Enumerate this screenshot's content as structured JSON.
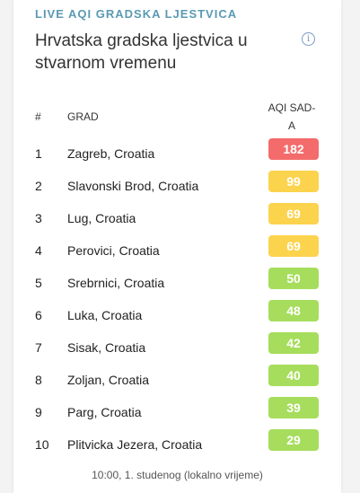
{
  "widget": {
    "eyebrow": "LIVE AQI GRADSKA LJESTVICA",
    "title": "Hrvatska gradska ljestvica u stvarnom vremenu",
    "info_icon": "info-icon",
    "info_glyph": "i"
  },
  "table": {
    "headers": {
      "rank": "#",
      "city": "GRAD",
      "aqi": "AQI SAD-A"
    },
    "rows": [
      {
        "rank": "1",
        "city": "Zagreb, Croatia",
        "aqi": "182",
        "color": "#f46b6b"
      },
      {
        "rank": "2",
        "city": "Slavonski Brod, Croatia",
        "aqi": "99",
        "color": "#fcd34d"
      },
      {
        "rank": "3",
        "city": "Lug, Croatia",
        "aqi": "69",
        "color": "#fcd34d"
      },
      {
        "rank": "4",
        "city": "Perovici, Croatia",
        "aqi": "69",
        "color": "#fcd34d"
      },
      {
        "rank": "5",
        "city": "Srebrnici, Croatia",
        "aqi": "50",
        "color": "#a6dd5c"
      },
      {
        "rank": "6",
        "city": "Luka, Croatia",
        "aqi": "48",
        "color": "#a6dd5c"
      },
      {
        "rank": "7",
        "city": "Sisak, Croatia",
        "aqi": "42",
        "color": "#a6dd5c"
      },
      {
        "rank": "8",
        "city": "Zoljan, Croatia",
        "aqi": "40",
        "color": "#a6dd5c"
      },
      {
        "rank": "9",
        "city": "Parg, Croatia",
        "aqi": "39",
        "color": "#a6dd5c"
      },
      {
        "rank": "10",
        "city": "Plitvicka Jezera, Croatia",
        "aqi": "29",
        "color": "#a6dd5c"
      }
    ]
  },
  "footer": {
    "timestamp": "10:00, 1. studenog (lokalno vrijeme)"
  }
}
